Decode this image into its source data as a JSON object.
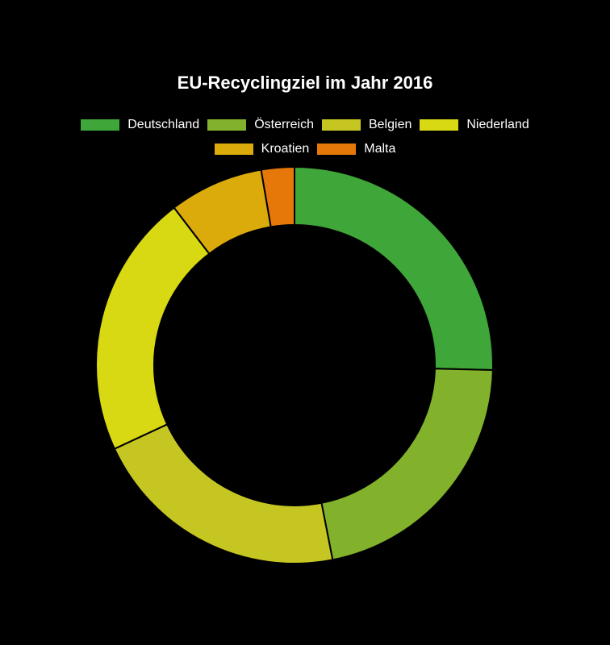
{
  "title": "EU-Recyclingziel im Jahr 2016",
  "colors": {
    "background": "#000000",
    "text": "#ffffff",
    "slice_border": "#000000"
  },
  "chart_data": {
    "type": "pie",
    "variant": "doughnut",
    "title": "EU-Recyclingziel im Jahr 2016",
    "legend_position": "top",
    "categories": [
      "Deutschland",
      "Österreich",
      "Belgien",
      "Niederland",
      "Kroatien",
      "Malta"
    ],
    "values": [
      66,
      56,
      55,
      56,
      20,
      7
    ],
    "colors": [
      "#3fa639",
      "#82b22b",
      "#c6c623",
      "#d8d813",
      "#dbab0c",
      "#e6780a"
    ]
  }
}
